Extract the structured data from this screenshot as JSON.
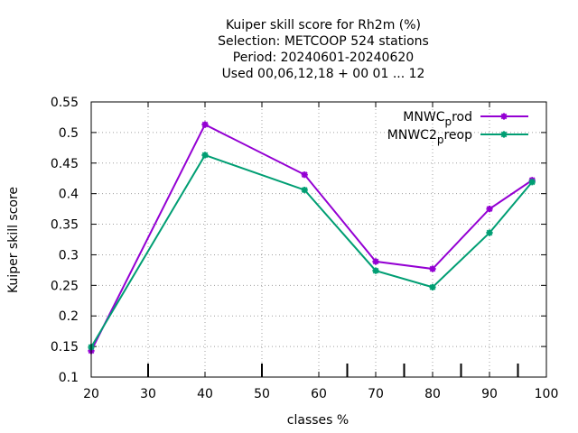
{
  "chart_data": {
    "type": "line",
    "title_lines": [
      "Kuiper skill score  for Rh2m (%)",
      "Selection: METCOOP    524 stations",
      "Period: 20240601-20240620",
      "Used  00,06,12,18 + 00 01 ... 12"
    ],
    "xlabel": "classes %",
    "ylabel": "Kuiper skill score",
    "xlim": [
      20,
      100
    ],
    "ylim": [
      0.1,
      0.55
    ],
    "xticks": [
      20,
      30,
      40,
      50,
      60,
      70,
      80,
      90,
      100
    ],
    "yticks": [
      0.1,
      0.15,
      0.2,
      0.25,
      0.3,
      0.35,
      0.4,
      0.45,
      0.5,
      0.55
    ],
    "ytick_labels": [
      "0.1",
      "0.15",
      "0.2",
      "0.25",
      "0.3",
      "0.35",
      "0.4",
      "0.45",
      "0.5",
      "0.55"
    ],
    "class_marks": [
      30,
      50,
      65,
      75,
      85,
      95
    ],
    "grid": true,
    "legend_position": "top-right",
    "series": [
      {
        "name_main": "MNWC",
        "name_sub": "p",
        "name_rest": "rod",
        "color": "#9400d3",
        "x": [
          20,
          40,
          57.5,
          70,
          80,
          90,
          97.5
        ],
        "y": [
          0.143,
          0.513,
          0.431,
          0.289,
          0.277,
          0.375,
          0.422
        ]
      },
      {
        "name_main": "MNWC2",
        "name_sub": "p",
        "name_rest": "reop",
        "color": "#009e73",
        "x": [
          20,
          40,
          57.5,
          70,
          80,
          90,
          97.5
        ],
        "y": [
          0.149,
          0.463,
          0.406,
          0.274,
          0.247,
          0.336,
          0.419
        ]
      }
    ]
  }
}
